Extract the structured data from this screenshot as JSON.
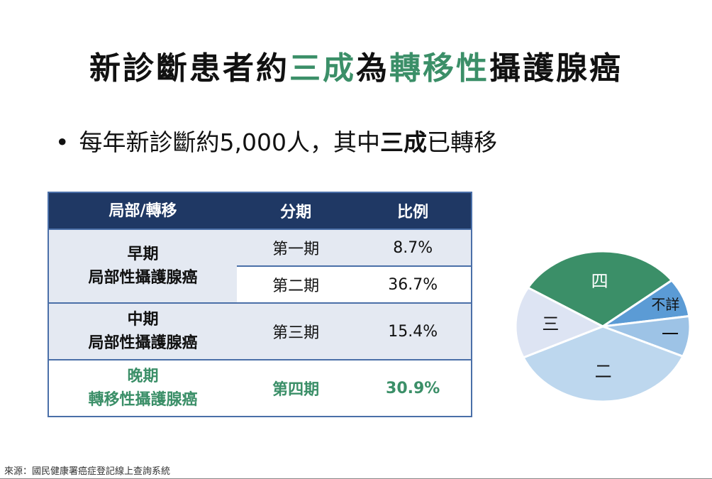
{
  "title": {
    "part1": "新診斷患者約",
    "part2": "三成",
    "part3": "為",
    "part4": "轉移性",
    "part5": "攝護腺癌"
  },
  "bullet": {
    "symbol": "•",
    "text1": "每年新診斷約5,000人，其中",
    "bold": "三成",
    "text2": "已轉移"
  },
  "table": {
    "headers": [
      "局部/轉移",
      "分期",
      "比例"
    ],
    "rows": [
      {
        "group_line1": "早期",
        "group_line2": "局部性攝護腺癌",
        "stage": "第一期",
        "ratio": "8.7%"
      },
      {
        "stage": "第二期",
        "ratio": "36.7%"
      },
      {
        "group_line1": "中期",
        "group_line2": "局部性攝護腺癌",
        "stage": "第三期",
        "ratio": "15.4%"
      },
      {
        "group_line1": "晚期",
        "group_line2": "轉移性攝護腺癌",
        "stage": "第四期",
        "ratio": "30.9%"
      }
    ]
  },
  "chart_data": {
    "type": "pie",
    "categories": [
      "四",
      "不詳",
      "一",
      "二",
      "三"
    ],
    "values": [
      30.9,
      8.3,
      8.7,
      36.7,
      15.4
    ],
    "colors": [
      "#3b8f68",
      "#5b9bd5",
      "#9dc3e6",
      "#bdd7ee",
      "#dde4f3"
    ],
    "label_colors": [
      "#ffffff",
      "#111111",
      "#111111",
      "#111111",
      "#111111"
    ]
  },
  "source": "來源：國民健康署癌症登記線上查詢系統",
  "colors": {
    "accent_green": "#3b8f68",
    "header_navy": "#1f3864"
  }
}
